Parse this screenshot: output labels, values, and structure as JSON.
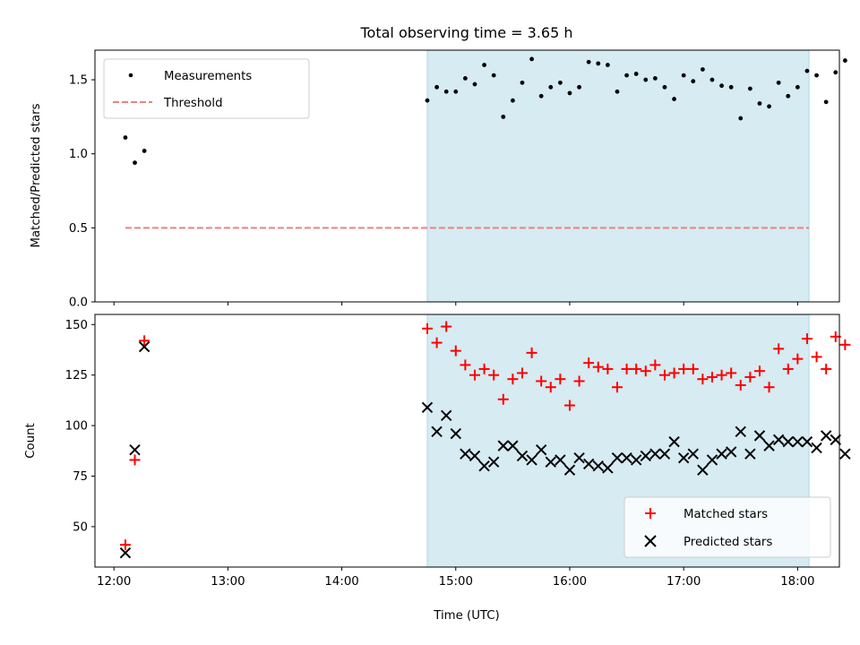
{
  "title": "Total observing time = 3.65 h",
  "xlabel": "Time (UTC)",
  "x_ticks": [
    "12:00",
    "13:00",
    "14:00",
    "15:00",
    "16:00",
    "17:00",
    "18:00"
  ],
  "shade_color": "#add8e6",
  "chart_data": [
    {
      "type": "scatter",
      "ylabel": "Matched/Predicted stars",
      "xlim": [
        "11:50",
        "18:22"
      ],
      "ylim": [
        0,
        1.7
      ],
      "y_ticks": [
        "0.0",
        "0.5",
        "1.0",
        "1.5"
      ],
      "shaded_region": [
        "14:45",
        "18:06"
      ],
      "legend_position": "upper-left",
      "series": [
        {
          "name": "Measurements",
          "kind": "point",
          "color": "#000000",
          "points": [
            [
              "12:06",
              1.11
            ],
            [
              "12:11",
              0.94
            ],
            [
              "12:16",
              1.02
            ],
            [
              "14:45",
              1.36
            ],
            [
              "14:50",
              1.45
            ],
            [
              "14:55",
              1.42
            ],
            [
              "15:00",
              1.42
            ],
            [
              "15:05",
              1.51
            ],
            [
              "15:10",
              1.47
            ],
            [
              "15:15",
              1.6
            ],
            [
              "15:20",
              1.53
            ],
            [
              "15:25",
              1.25
            ],
            [
              "15:30",
              1.36
            ],
            [
              "15:35",
              1.48
            ],
            [
              "15:40",
              1.64
            ],
            [
              "15:45",
              1.39
            ],
            [
              "15:50",
              1.45
            ],
            [
              "15:55",
              1.48
            ],
            [
              "16:00",
              1.41
            ],
            [
              "16:05",
              1.45
            ],
            [
              "16:10",
              1.62
            ],
            [
              "16:15",
              1.61
            ],
            [
              "16:20",
              1.6
            ],
            [
              "16:25",
              1.42
            ],
            [
              "16:30",
              1.53
            ],
            [
              "16:35",
              1.54
            ],
            [
              "16:40",
              1.5
            ],
            [
              "16:45",
              1.51
            ],
            [
              "16:50",
              1.45
            ],
            [
              "16:55",
              1.37
            ],
            [
              "17:00",
              1.53
            ],
            [
              "17:05",
              1.49
            ],
            [
              "17:10",
              1.57
            ],
            [
              "17:15",
              1.5
            ],
            [
              "17:20",
              1.46
            ],
            [
              "17:25",
              1.45
            ],
            [
              "17:30",
              1.24
            ],
            [
              "17:35",
              1.44
            ],
            [
              "17:40",
              1.34
            ],
            [
              "17:45",
              1.32
            ],
            [
              "17:50",
              1.48
            ],
            [
              "17:55",
              1.39
            ],
            [
              "18:00",
              1.45
            ],
            [
              "18:05",
              1.56
            ],
            [
              "18:10",
              1.53
            ],
            [
              "18:15",
              1.35
            ],
            [
              "18:20",
              1.55
            ],
            [
              "18:25",
              1.63
            ]
          ]
        },
        {
          "name": "Threshold",
          "kind": "dashed-line",
          "color": "#f08080",
          "points": [
            [
              "12:06",
              0.5
            ],
            [
              "18:06",
              0.5
            ]
          ]
        }
      ]
    },
    {
      "type": "scatter",
      "ylabel": "Count",
      "xlim": [
        "11:50",
        "18:22"
      ],
      "ylim": [
        30,
        155
      ],
      "y_ticks": [
        "50",
        "75",
        "100",
        "125",
        "150"
      ],
      "shaded_region": [
        "14:45",
        "18:06"
      ],
      "legend_position": "lower-right",
      "series": [
        {
          "name": "Matched stars",
          "kind": "plus",
          "color": "#ff0000",
          "points": [
            [
              "12:06",
              41
            ],
            [
              "12:11",
              83
            ],
            [
              "12:16",
              142
            ],
            [
              "14:45",
              148
            ],
            [
              "14:50",
              141
            ],
            [
              "14:55",
              149
            ],
            [
              "15:00",
              137
            ],
            [
              "15:05",
              130
            ],
            [
              "15:10",
              125
            ],
            [
              "15:15",
              128
            ],
            [
              "15:20",
              125
            ],
            [
              "15:25",
              113
            ],
            [
              "15:30",
              123
            ],
            [
              "15:35",
              126
            ],
            [
              "15:40",
              136
            ],
            [
              "15:45",
              122
            ],
            [
              "15:50",
              119
            ],
            [
              "15:55",
              123
            ],
            [
              "16:00",
              110
            ],
            [
              "16:05",
              122
            ],
            [
              "16:10",
              131
            ],
            [
              "16:15",
              129
            ],
            [
              "16:20",
              128
            ],
            [
              "16:25",
              119
            ],
            [
              "16:30",
              128
            ],
            [
              "16:35",
              128
            ],
            [
              "16:40",
              127
            ],
            [
              "16:45",
              130
            ],
            [
              "16:50",
              125
            ],
            [
              "16:55",
              126
            ],
            [
              "17:00",
              128
            ],
            [
              "17:05",
              128
            ],
            [
              "17:10",
              123
            ],
            [
              "17:15",
              124
            ],
            [
              "17:20",
              125
            ],
            [
              "17:25",
              126
            ],
            [
              "17:30",
              120
            ],
            [
              "17:35",
              124
            ],
            [
              "17:40",
              127
            ],
            [
              "17:45",
              119
            ],
            [
              "17:50",
              138
            ],
            [
              "17:55",
              128
            ],
            [
              "18:00",
              133
            ],
            [
              "18:05",
              143
            ],
            [
              "18:10",
              134
            ],
            [
              "18:15",
              128
            ],
            [
              "18:20",
              144
            ],
            [
              "18:25",
              140
            ]
          ]
        },
        {
          "name": "Predicted stars",
          "kind": "cross",
          "color": "#000000",
          "points": [
            [
              "12:06",
              37
            ],
            [
              "12:11",
              88
            ],
            [
              "12:16",
              139
            ],
            [
              "14:45",
              109
            ],
            [
              "14:50",
              97
            ],
            [
              "14:55",
              105
            ],
            [
              "15:00",
              96
            ],
            [
              "15:05",
              86
            ],
            [
              "15:10",
              85
            ],
            [
              "15:15",
              80
            ],
            [
              "15:20",
              82
            ],
            [
              "15:25",
              90
            ],
            [
              "15:30",
              90
            ],
            [
              "15:35",
              85
            ],
            [
              "15:40",
              83
            ],
            [
              "15:45",
              88
            ],
            [
              "15:50",
              82
            ],
            [
              "15:55",
              83
            ],
            [
              "16:00",
              78
            ],
            [
              "16:05",
              84
            ],
            [
              "16:10",
              81
            ],
            [
              "16:15",
              80
            ],
            [
              "16:20",
              79
            ],
            [
              "16:25",
              84
            ],
            [
              "16:30",
              84
            ],
            [
              "16:35",
              83
            ],
            [
              "16:40",
              85
            ],
            [
              "16:45",
              86
            ],
            [
              "16:50",
              86
            ],
            [
              "16:55",
              92
            ],
            [
              "17:00",
              84
            ],
            [
              "17:05",
              86
            ],
            [
              "17:10",
              78
            ],
            [
              "17:15",
              83
            ],
            [
              "17:20",
              86
            ],
            [
              "17:25",
              87
            ],
            [
              "17:30",
              97
            ],
            [
              "17:35",
              86
            ],
            [
              "17:40",
              95
            ],
            [
              "17:45",
              90
            ],
            [
              "17:50",
              93
            ],
            [
              "17:55",
              92
            ],
            [
              "18:00",
              92
            ],
            [
              "18:05",
              92
            ],
            [
              "18:10",
              89
            ],
            [
              "18:15",
              95
            ],
            [
              "18:20",
              93
            ],
            [
              "18:25",
              86
            ]
          ]
        }
      ]
    }
  ]
}
